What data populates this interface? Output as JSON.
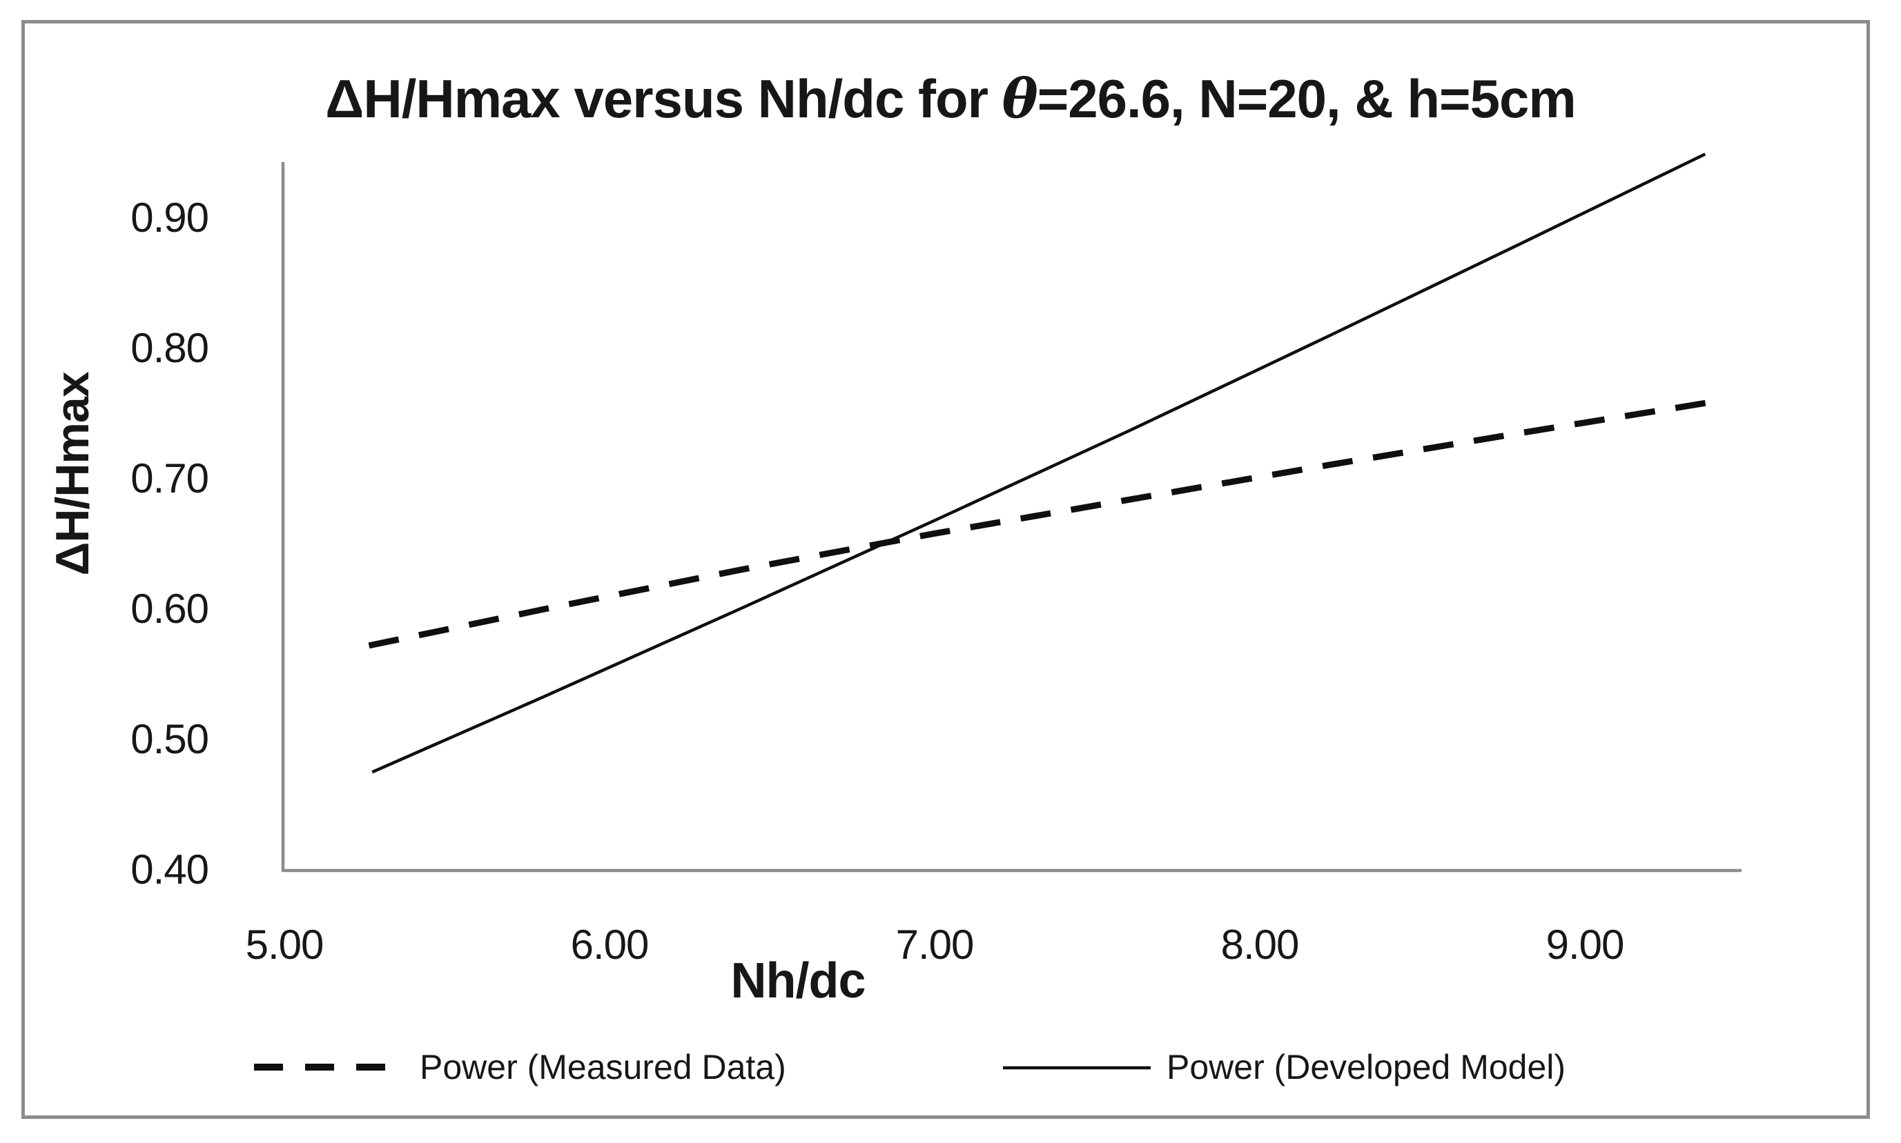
{
  "figure": {
    "title_part1": "ΔH/Hmax versus Nh/dc for ",
    "title_theta": "θ",
    "title_part2": "=26.6, N=20, & h=5cm"
  },
  "colors": {
    "line": "#0f0f0f",
    "frame": "#8c8c8c",
    "axis": "#8c8c8c",
    "text": "#171717"
  },
  "chart_data": {
    "type": "line",
    "title": "ΔH/Hmax versus Nh/dc for θ=26.6, N=20, & h=5cm",
    "xlabel": "Nh/dc",
    "ylabel": "ΔH/Hmax",
    "xlim": [
      5.0,
      9.48
    ],
    "ylim": [
      0.4,
      0.945
    ],
    "x_ticks": [
      "5.00",
      "6.00",
      "7.00",
      "8.00",
      "9.00"
    ],
    "y_ticks": [
      "0.40",
      "0.50",
      "0.60",
      "0.70",
      "0.80",
      "0.90"
    ],
    "grid": false,
    "tick_marks": false,
    "legend_position": "bottom",
    "series": [
      {
        "name": "Power (Measured Data)",
        "curve": "power-trendline",
        "line_style": "dashed",
        "x": [
          5.26,
          5.8,
          6.4,
          7.0,
          7.6,
          8.2,
          8.8,
          9.42
        ],
        "y": [
          0.572,
          0.6,
          0.63,
          0.658,
          0.684,
          0.71,
          0.735,
          0.76
        ]
      },
      {
        "name": "Power (Developed Model)",
        "curve": "power-trendline",
        "line_style": "solid",
        "x": [
          5.27,
          5.8,
          6.4,
          7.0,
          7.6,
          8.2,
          8.8,
          9.37
        ],
        "y": [
          0.475,
          0.533,
          0.6,
          0.668,
          0.737,
          0.808,
          0.88,
          0.949
        ]
      }
    ],
    "series_intersection": {
      "x": 6.82,
      "y": 0.647
    }
  },
  "legend": {
    "items": [
      {
        "label": "Power (Measured Data)",
        "style": "dashed"
      },
      {
        "label": "Power (Developed Model)",
        "style": "solid"
      }
    ]
  }
}
